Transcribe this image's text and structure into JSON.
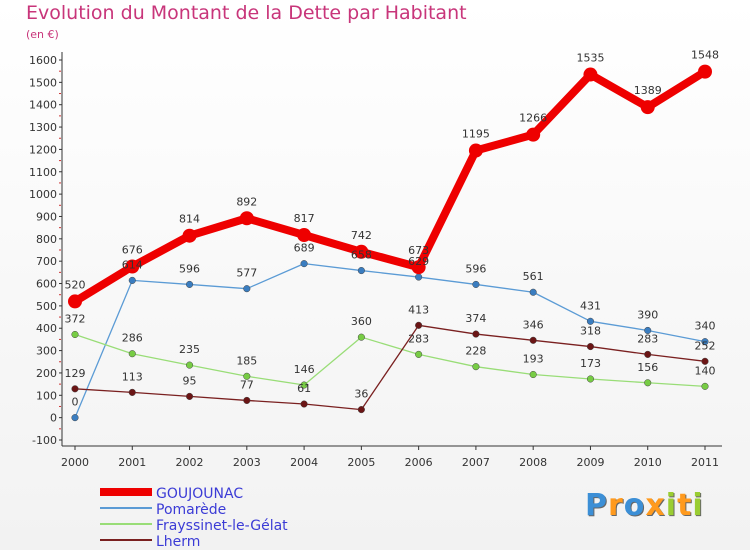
{
  "chart_data": {
    "type": "line",
    "title": "Evolution du Montant de la Dette par Habitant",
    "subtitle": "(en €)",
    "x": [
      "2000",
      "2001",
      "2002",
      "2003",
      "2004",
      "2005",
      "2006",
      "2007",
      "2008",
      "2009",
      "2010",
      "2011"
    ],
    "ylim": [
      -100,
      1600
    ],
    "yticks": [
      "-100",
      "0",
      "100",
      "200",
      "300",
      "400",
      "500",
      "600",
      "700",
      "800",
      "900",
      "1000",
      "1100",
      "1200",
      "1300",
      "1400",
      "1500",
      "1600"
    ],
    "grid": false,
    "legend_position": "bottom-left",
    "series": [
      {
        "name": "GOUJOUNAC",
        "color": "#ee0000",
        "values": [
          520,
          676,
          814,
          892,
          817,
          742,
          673,
          1195,
          1266,
          1535,
          1389,
          1548
        ],
        "labels": [
          "520",
          "676",
          "814",
          "892",
          "817",
          "742",
          "673",
          "1195",
          "1266",
          "1535",
          "1389",
          "1548"
        ]
      },
      {
        "name": "Pomarède",
        "color": "#5b9bd5",
        "marker": "#3a7dc0",
        "values": [
          0,
          614,
          596,
          577,
          689,
          658,
          629,
          596,
          561,
          431,
          390,
          340
        ],
        "labels": [
          "0",
          "614",
          "596",
          "577",
          "689",
          "658",
          "629",
          "596",
          "561",
          "431",
          "390",
          "340"
        ]
      },
      {
        "name": "Frayssinet-le-Gélat",
        "color": "#99dd77",
        "marker": "#77cc44",
        "values": [
          372,
          286,
          235,
          185,
          146,
          360,
          283,
          228,
          193,
          173,
          156,
          140
        ],
        "labels": [
          "372",
          "286",
          "235",
          "185",
          "146",
          "360",
          "283",
          "228",
          "193",
          "173",
          "156",
          "140"
        ]
      },
      {
        "name": "Lherm",
        "color": "#7a2020",
        "marker": "#6b1515",
        "values": [
          129,
          113,
          95,
          77,
          61,
          36,
          413,
          374,
          346,
          318,
          283,
          252
        ],
        "labels": [
          "129",
          "113",
          "95",
          "77",
          "61",
          "36",
          "413",
          "374",
          "346",
          "318",
          "283",
          "252"
        ]
      }
    ]
  },
  "logo": {
    "letters": [
      "P",
      "r",
      "o",
      "x",
      "i",
      "t",
      "i"
    ],
    "colors": [
      "#3c8fd6",
      "#ff9a1e",
      "#3c8fd6",
      "#ff9a1e",
      "#9acd32",
      "#ff9a1e",
      "#9acd32"
    ]
  }
}
